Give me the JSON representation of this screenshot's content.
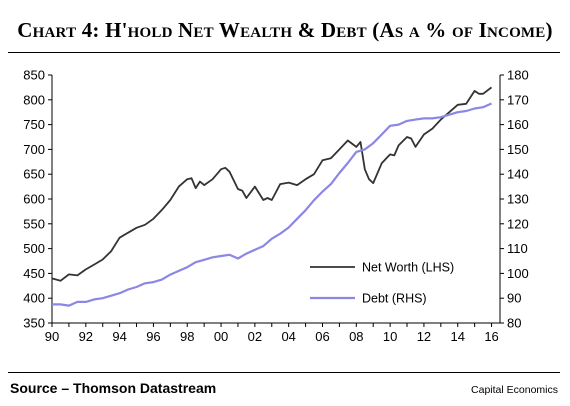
{
  "title": "Chart 4: H'hold Net Wealth & Debt (As a % of Income)",
  "source": "Source – Thomson Datastream",
  "credit": "Capital Economics",
  "chart_data": {
    "type": "line",
    "x_ticks": [
      "90",
      "92",
      "94",
      "96",
      "98",
      "00",
      "02",
      "04",
      "06",
      "08",
      "10",
      "12",
      "14",
      "16"
    ],
    "xlim": [
      1990,
      2016.5
    ],
    "y_left": {
      "ticks": [
        350,
        400,
        450,
        500,
        550,
        600,
        650,
        700,
        750,
        800,
        850
      ],
      "ylim": [
        350,
        850
      ]
    },
    "y_right": {
      "ticks": [
        80,
        90,
        100,
        110,
        120,
        130,
        140,
        150,
        160,
        170,
        180
      ],
      "ylim": [
        80,
        180
      ]
    },
    "grid": false,
    "legend_position": "bottom-right",
    "series": [
      {
        "name": "Net Worth (LHS)",
        "axis": "left",
        "color": "#333333",
        "points": [
          [
            1990.0,
            440
          ],
          [
            1990.5,
            435
          ],
          [
            1991.0,
            448
          ],
          [
            1991.5,
            446
          ],
          [
            1992.0,
            458
          ],
          [
            1992.5,
            468
          ],
          [
            1993.0,
            478
          ],
          [
            1993.5,
            495
          ],
          [
            1994.0,
            522
          ],
          [
            1994.5,
            532
          ],
          [
            1995.0,
            542
          ],
          [
            1995.5,
            548
          ],
          [
            1996.0,
            560
          ],
          [
            1996.5,
            578
          ],
          [
            1997.0,
            598
          ],
          [
            1997.5,
            625
          ],
          [
            1998.0,
            640
          ],
          [
            1998.25,
            642
          ],
          [
            1998.5,
            622
          ],
          [
            1998.75,
            635
          ],
          [
            1999.0,
            628
          ],
          [
            1999.5,
            640
          ],
          [
            2000.0,
            660
          ],
          [
            2000.25,
            663
          ],
          [
            2000.5,
            655
          ],
          [
            2001.0,
            620
          ],
          [
            2001.25,
            617
          ],
          [
            2001.5,
            602
          ],
          [
            2002.0,
            625
          ],
          [
            2002.5,
            598
          ],
          [
            2002.75,
            602
          ],
          [
            2003.0,
            598
          ],
          [
            2003.5,
            630
          ],
          [
            2004.0,
            633
          ],
          [
            2004.5,
            628
          ],
          [
            2005.0,
            640
          ],
          [
            2005.5,
            650
          ],
          [
            2006.0,
            678
          ],
          [
            2006.5,
            682
          ],
          [
            2007.0,
            700
          ],
          [
            2007.5,
            718
          ],
          [
            2008.0,
            705
          ],
          [
            2008.25,
            715
          ],
          [
            2008.5,
            660
          ],
          [
            2008.75,
            640
          ],
          [
            2009.0,
            632
          ],
          [
            2009.5,
            672
          ],
          [
            2010.0,
            690
          ],
          [
            2010.25,
            688
          ],
          [
            2010.5,
            708
          ],
          [
            2011.0,
            725
          ],
          [
            2011.25,
            722
          ],
          [
            2011.5,
            705
          ],
          [
            2012.0,
            730
          ],
          [
            2012.5,
            742
          ],
          [
            2013.0,
            760
          ],
          [
            2013.5,
            775
          ],
          [
            2014.0,
            790
          ],
          [
            2014.5,
            792
          ],
          [
            2015.0,
            818
          ],
          [
            2015.25,
            812
          ],
          [
            2015.5,
            812
          ],
          [
            2016.0,
            825
          ]
        ]
      },
      {
        "name": "Debt (RHS)",
        "axis": "right",
        "color": "#8b87e6",
        "points": [
          [
            1990.0,
            87.5
          ],
          [
            1990.5,
            87.5
          ],
          [
            1991.0,
            87.0
          ],
          [
            1991.5,
            88.5
          ],
          [
            1992.0,
            88.5
          ],
          [
            1992.5,
            89.5
          ],
          [
            1993.0,
            90.0
          ],
          [
            1993.5,
            91.0
          ],
          [
            1994.0,
            92.0
          ],
          [
            1994.5,
            93.5
          ],
          [
            1995.0,
            94.5
          ],
          [
            1995.5,
            96.0
          ],
          [
            1996.0,
            96.5
          ],
          [
            1996.5,
            97.5
          ],
          [
            1997.0,
            99.5
          ],
          [
            1997.5,
            101.0
          ],
          [
            1998.0,
            102.5
          ],
          [
            1998.5,
            104.5
          ],
          [
            1999.0,
            105.5
          ],
          [
            1999.5,
            106.5
          ],
          [
            2000.0,
            107.0
          ],
          [
            2000.5,
            107.5
          ],
          [
            2001.0,
            106.0
          ],
          [
            2001.5,
            108.0
          ],
          [
            2002.0,
            109.5
          ],
          [
            2002.5,
            111.0
          ],
          [
            2003.0,
            114.0
          ],
          [
            2003.5,
            116.0
          ],
          [
            2004.0,
            118.5
          ],
          [
            2004.5,
            122.0
          ],
          [
            2005.0,
            125.5
          ],
          [
            2005.5,
            129.5
          ],
          [
            2006.0,
            133.0
          ],
          [
            2006.5,
            136.0
          ],
          [
            2007.0,
            140.5
          ],
          [
            2007.5,
            144.5
          ],
          [
            2008.0,
            149.0
          ],
          [
            2008.5,
            150.0
          ],
          [
            2009.0,
            152.5
          ],
          [
            2009.5,
            156.0
          ],
          [
            2010.0,
            159.5
          ],
          [
            2010.5,
            160.0
          ],
          [
            2011.0,
            161.5
          ],
          [
            2011.5,
            162.0
          ],
          [
            2012.0,
            162.5
          ],
          [
            2012.5,
            162.5
          ],
          [
            2013.0,
            163.0
          ],
          [
            2013.5,
            164.0
          ],
          [
            2014.0,
            165.0
          ],
          [
            2014.5,
            165.5
          ],
          [
            2015.0,
            166.5
          ],
          [
            2015.5,
            167.0
          ],
          [
            2016.0,
            168.5
          ]
        ]
      }
    ]
  }
}
